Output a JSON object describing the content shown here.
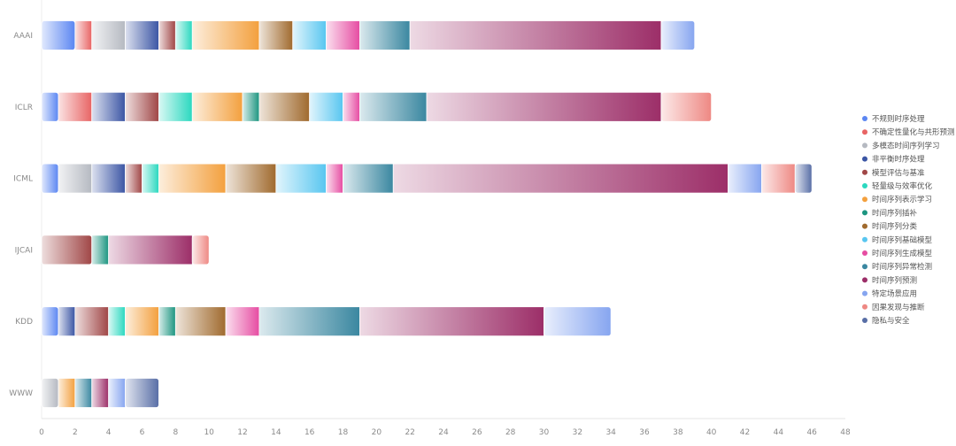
{
  "chart_data": {
    "type": "bar",
    "orientation": "horizontal",
    "stacked": true,
    "title": "",
    "xlabel": "",
    "ylabel": "",
    "xlim": [
      0,
      48
    ],
    "x_ticks": [
      0,
      2,
      4,
      6,
      8,
      10,
      12,
      14,
      16,
      18,
      20,
      22,
      24,
      26,
      28,
      30,
      32,
      34,
      36,
      38,
      40,
      42,
      44,
      46,
      48
    ],
    "categories": [
      "AAAI",
      "ICLR",
      "ICML",
      "IJCAI",
      "KDD",
      "WWW"
    ],
    "legend_position": "right",
    "series": [
      {
        "name": "不规则时序处理",
        "color": "#5b86f2",
        "values": [
          2,
          1,
          1,
          0,
          1,
          0
        ]
      },
      {
        "name": "不确定性量化与共形预测",
        "color": "#e86464",
        "values": [
          1,
          2,
          0,
          0,
          0,
          0
        ]
      },
      {
        "name": "多模态时间序列学习",
        "color": "#b5b9c1",
        "values": [
          2,
          0,
          2,
          0,
          0,
          1
        ]
      },
      {
        "name": "非平衡时序处理",
        "color": "#3b55a4",
        "values": [
          2,
          2,
          2,
          0,
          1,
          0
        ]
      },
      {
        "name": "模型评估与基准",
        "color": "#a04646",
        "values": [
          1,
          2,
          1,
          3,
          2,
          0
        ]
      },
      {
        "name": "轻量级与效率优化",
        "color": "#2ad8bf",
        "values": [
          1,
          2,
          1,
          0,
          1,
          0
        ]
      },
      {
        "name": "时间序列表示学习",
        "color": "#f3a03e",
        "values": [
          4,
          3,
          4,
          0,
          2,
          1
        ]
      },
      {
        "name": "时间序列插补",
        "color": "#1c9580",
        "values": [
          0,
          1,
          0,
          1,
          1,
          0
        ]
      },
      {
        "name": "时间序列分类",
        "color": "#a06a2e",
        "values": [
          2,
          3,
          3,
          0,
          3,
          0
        ]
      },
      {
        "name": "时间序列基础模型",
        "color": "#58c6f0",
        "values": [
          2,
          2,
          3,
          0,
          0,
          0
        ]
      },
      {
        "name": "时间序列生成模型",
        "color": "#e64ca2",
        "values": [
          2,
          1,
          1,
          0,
          2,
          0
        ]
      },
      {
        "name": "时间序列异常检测",
        "color": "#3a87a0",
        "values": [
          3,
          4,
          3,
          0,
          6,
          1
        ]
      },
      {
        "name": "时间序列预测",
        "color": "#9c2e68",
        "values": [
          15,
          14,
          20,
          5,
          11,
          1
        ]
      },
      {
        "name": "特定场景应用",
        "color": "#86a5f0",
        "values": [
          2,
          0,
          2,
          0,
          4,
          1
        ]
      },
      {
        "name": "因果发现与推断",
        "color": "#ee8883",
        "values": [
          0,
          3,
          2,
          1,
          0,
          0
        ]
      },
      {
        "name": "隐私与安全",
        "color": "#586ea6",
        "values": [
          0,
          0,
          1,
          0,
          0,
          2
        ]
      }
    ]
  }
}
